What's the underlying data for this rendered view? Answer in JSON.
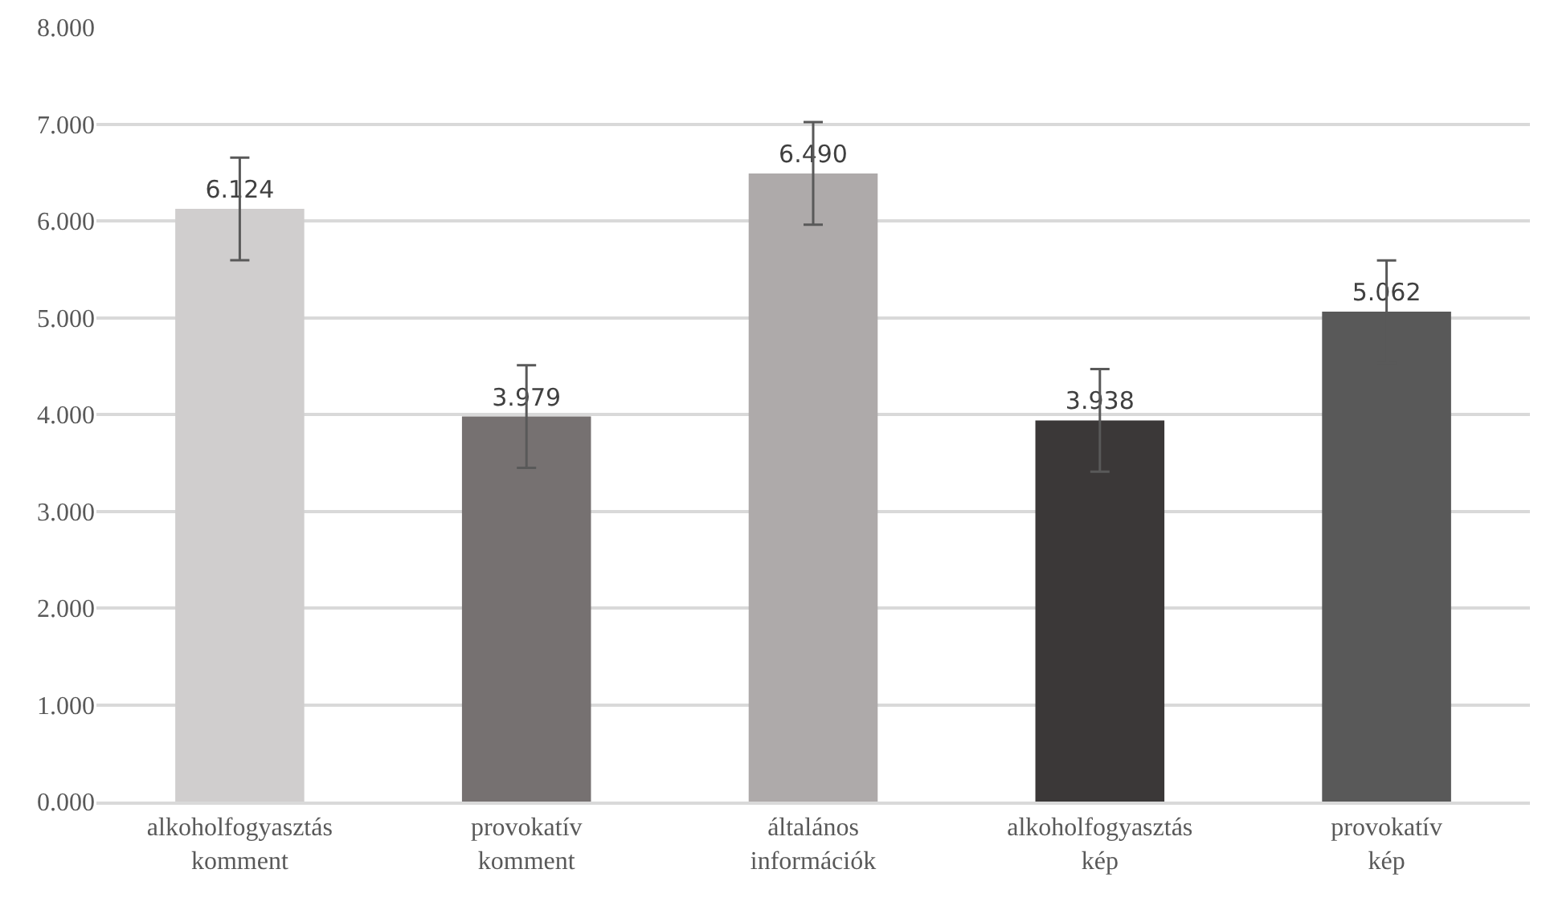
{
  "chart_data": {
    "type": "bar",
    "categories": [
      "alkoholfogyasztás komment",
      "provokatív komment",
      "általános információk",
      "alkoholfogyasztás kép",
      "provokatív kép"
    ],
    "values": [
      6.124,
      3.979,
      6.49,
      3.938,
      5.062
    ],
    "value_labels": [
      "6.124",
      "3.979",
      "6.490",
      "3.938",
      "5.062"
    ],
    "colors": [
      "#d0cece",
      "#767171",
      "#aeaaaa",
      "#3b3838",
      "#595959"
    ],
    "errors": [
      0.53,
      0.53,
      0.53,
      0.53,
      0.53
    ],
    "ylim": [
      0,
      8
    ],
    "yticks": [
      {
        "value": 0,
        "label": "0.000"
      },
      {
        "value": 1,
        "label": "1.000"
      },
      {
        "value": 2,
        "label": "2.000"
      },
      {
        "value": 3,
        "label": "3.000"
      },
      {
        "value": 4,
        "label": "4.000"
      },
      {
        "value": 5,
        "label": "5.000"
      },
      {
        "value": 6,
        "label": "6.000"
      },
      {
        "value": 7,
        "label": "7.000"
      },
      {
        "value": 8,
        "label": "8.000"
      }
    ],
    "grid": "y",
    "legend": false
  }
}
